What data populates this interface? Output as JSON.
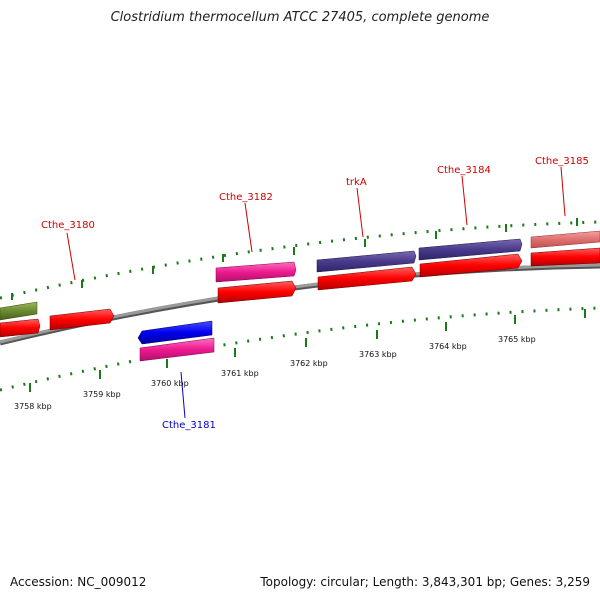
{
  "title": "Clostridium thermocellum ATCC 27405, complete genome",
  "footer": {
    "accession": "Accession: NC_009012",
    "summary": "Topology: circular; Length: 3,843,301 bp; Genes: 3,259"
  },
  "colors": {
    "backbone": "#888888",
    "tick": "#1a7a1a",
    "label_red": "#cc0000",
    "label_blue": "#0000cc"
  },
  "ticks": [
    {
      "label": "3758 kbp"
    },
    {
      "label": "3759 kbp"
    },
    {
      "label": "3760 kbp"
    },
    {
      "label": "3761 kbp"
    },
    {
      "label": "3762 kbp"
    },
    {
      "label": "3763 kbp"
    },
    {
      "label": "3764 kbp"
    },
    {
      "label": "3765 kbp"
    }
  ],
  "gene_labels": [
    {
      "text": "Cthe_3180",
      "color": "red"
    },
    {
      "text": "Cthe_3181",
      "color": "blue"
    },
    {
      "text": "Cthe_3182",
      "color": "red"
    },
    {
      "text": "trkA",
      "color": "red"
    },
    {
      "text": "Cthe_3184",
      "color": "red"
    },
    {
      "text": "Cthe_3185",
      "color": "red"
    }
  ]
}
